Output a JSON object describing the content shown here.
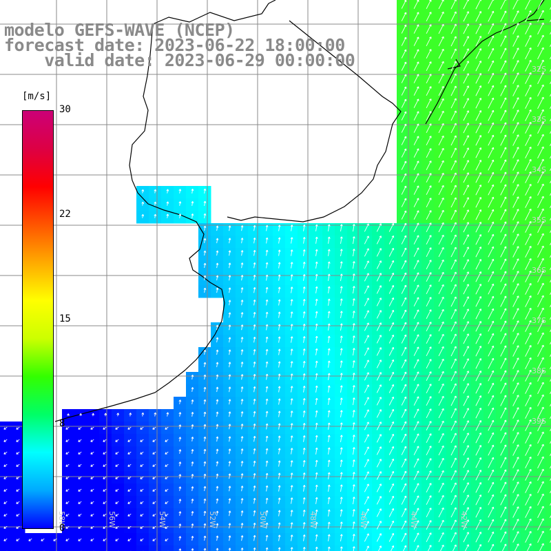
{
  "title": {
    "line1": "modelo GEFS-WAVE (NCEP)",
    "line2": "forecast date: 2023-06-22 18:00:00",
    "line3": "    valid date: 2023-06-29 00:00:00"
  },
  "colorbar": {
    "unit": "[m/s]",
    "ticks": [
      "30",
      "22",
      "15",
      "8",
      "0"
    ],
    "stops": [
      "#0000ff",
      "#00aaff",
      "#00ffff",
      "#00ff66",
      "#33ff00",
      "#ccff00",
      "#ffff00",
      "#ffaa00",
      "#ff5500",
      "#ff0000",
      "#dd0044",
      "#cc0077"
    ]
  },
  "map_labels": {
    "lon_labels": [
      "58W",
      "56W",
      "54W",
      "52W",
      "50W",
      "48W",
      "46W",
      "44W",
      "42W"
    ],
    "lat_labels": [
      "32S",
      "33S",
      "34S",
      "35S",
      "36S",
      "37S",
      "38S",
      "39S"
    ]
  },
  "colors": {
    "land": "#ffffff",
    "coast": "#000000",
    "grid": "#808080",
    "arrow": "#ffffff",
    "title": "#8a8a8a"
  }
}
